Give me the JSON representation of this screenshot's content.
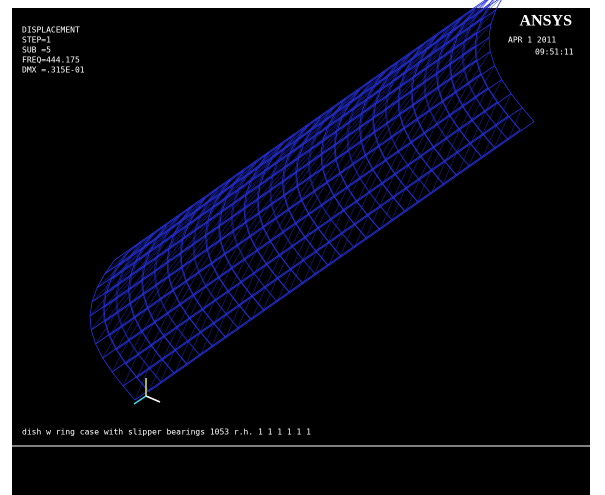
{
  "header": {
    "logo": "ANSYS",
    "date": "APR  1 2011",
    "time": "09:51:11"
  },
  "legend": [
    "DISPLACEMENT",
    "STEP=1",
    "SUB =5",
    "FREQ=444.175",
    "DMX =.315E-01"
  ],
  "footer": {
    "caption": "dish w ring case with slipper bearings 1053 r.h. 1 1 1 1 1 1"
  }
}
